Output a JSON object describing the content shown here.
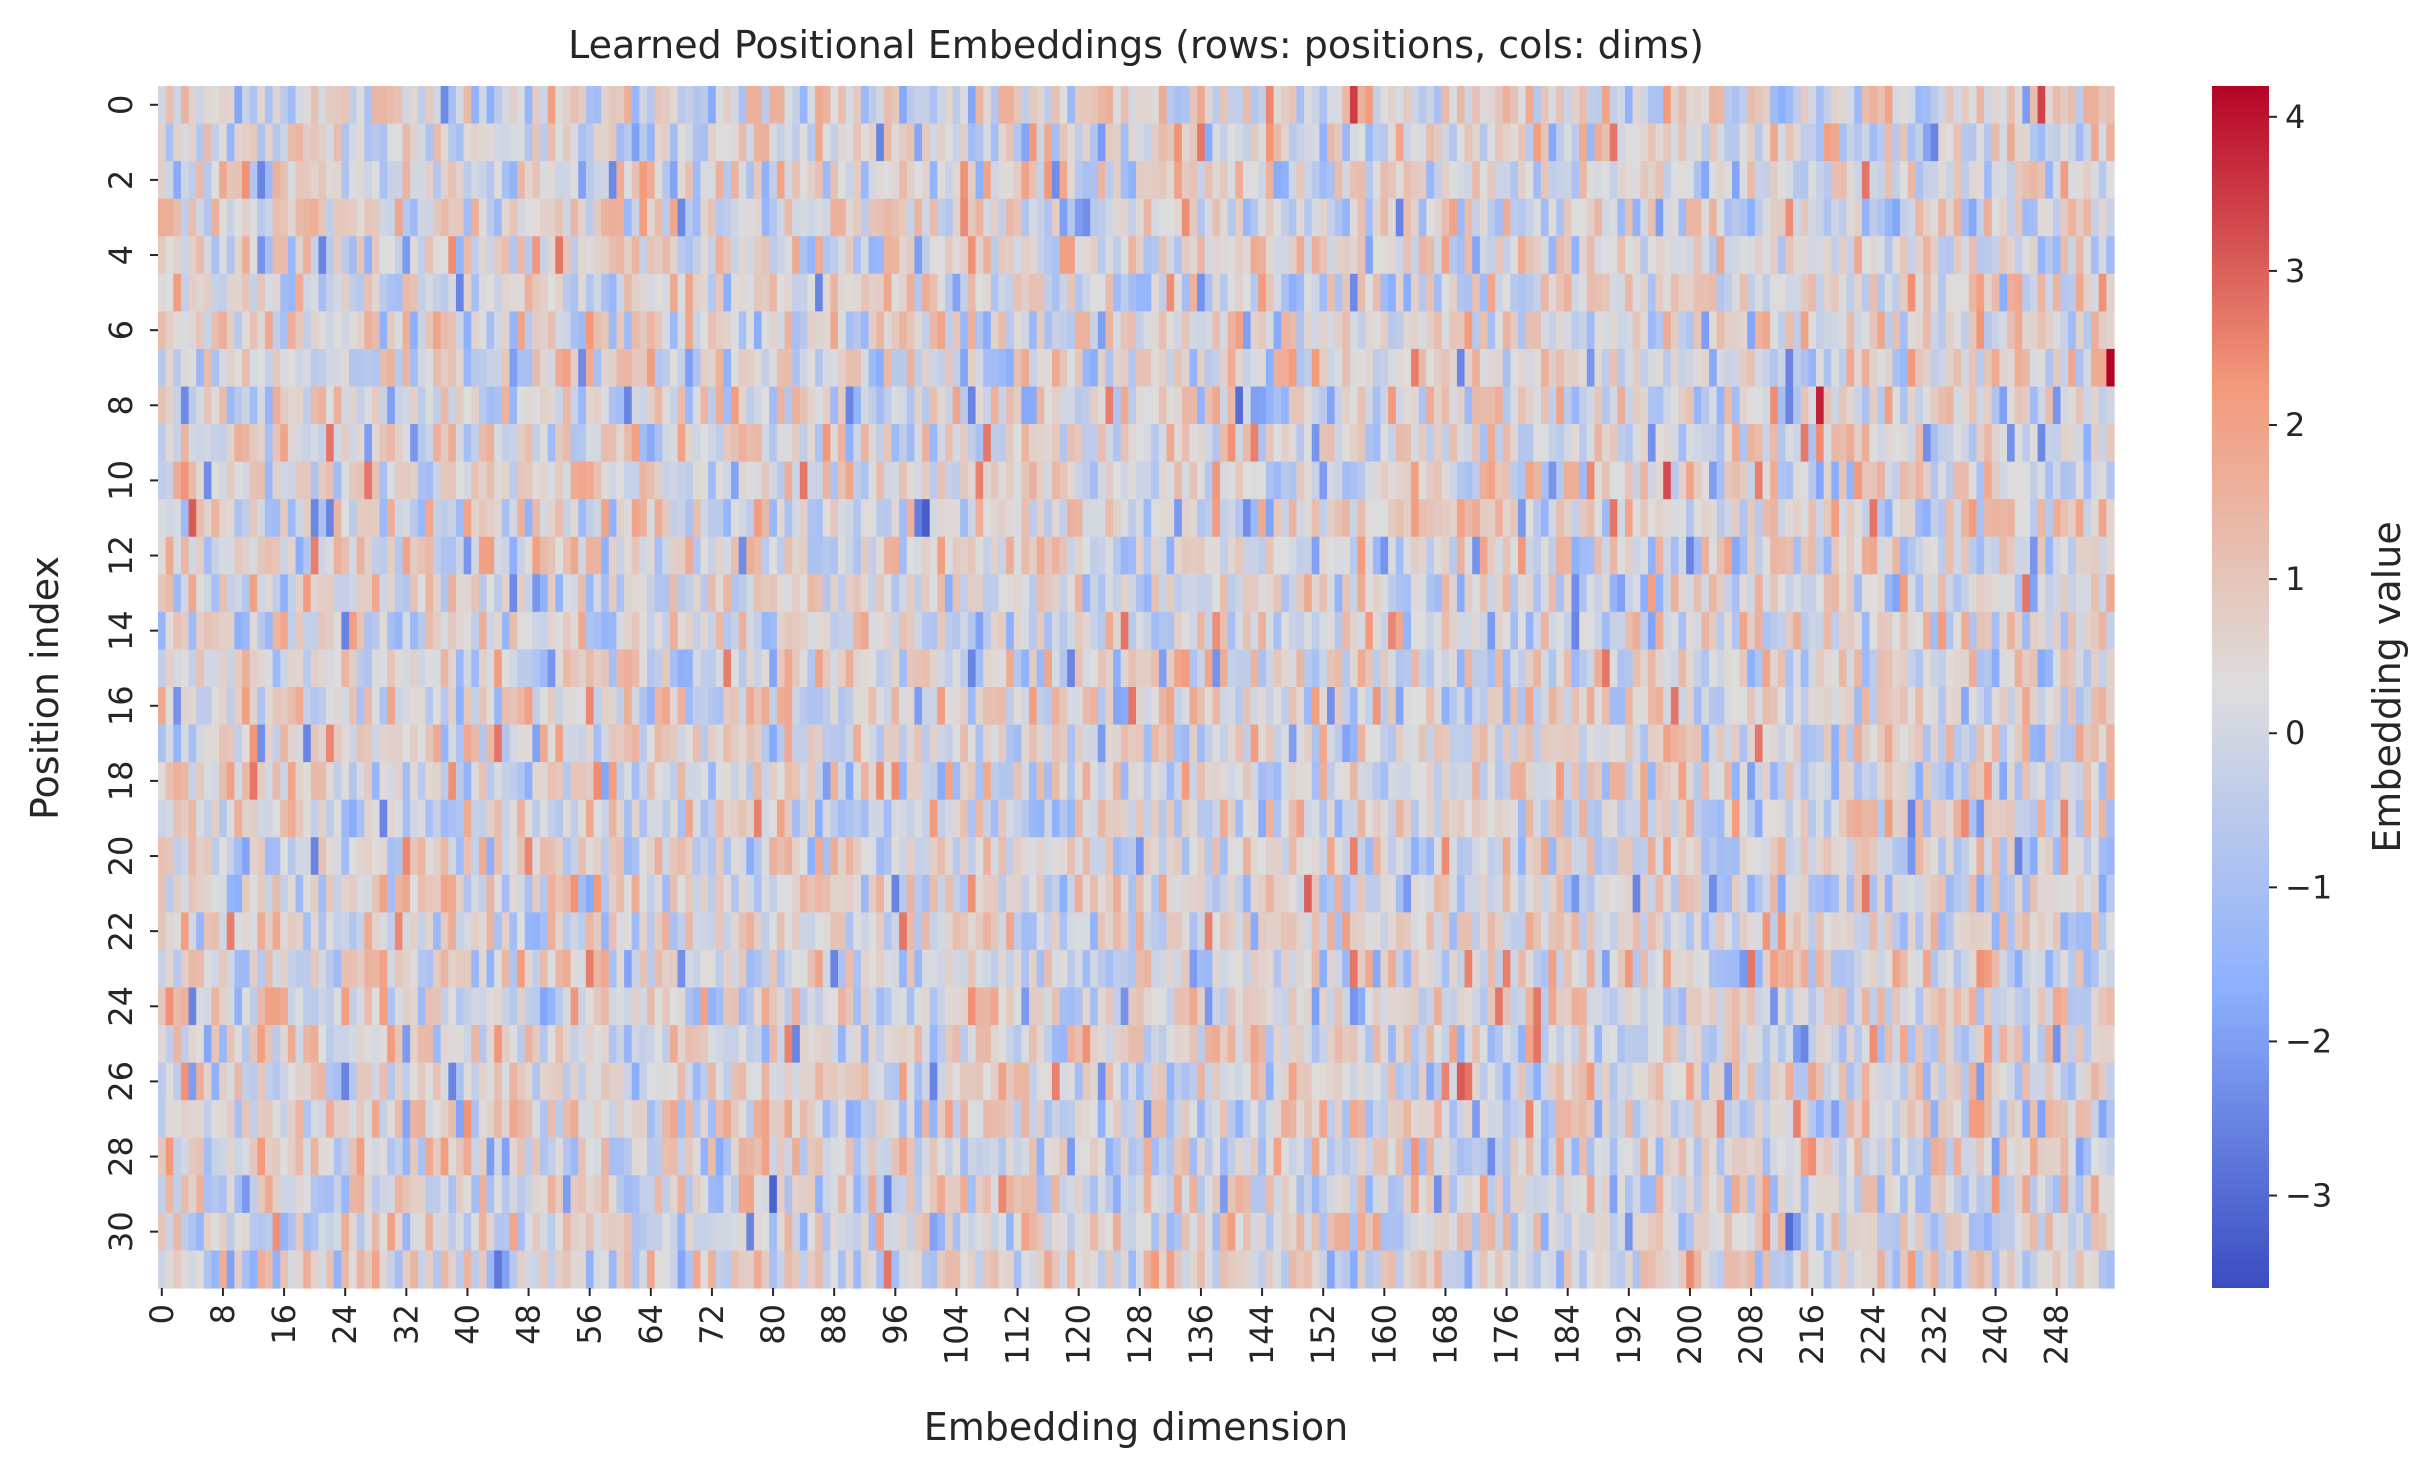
{
  "chart_data": {
    "type": "heatmap",
    "title": "Learned Positional Embeddings (rows: positions, cols: dims)",
    "xlabel": "Embedding dimension",
    "ylabel": "Position index",
    "n_rows": 32,
    "n_cols": 256,
    "colormap": "coolwarm",
    "colorbar": {
      "label": "Embedding value",
      "range": [
        -3.6,
        4.2
      ],
      "ticks": [
        -3,
        -2,
        -1,
        0,
        1,
        2,
        3,
        4
      ],
      "tick_labels": [
        "−3",
        "−2",
        "−1",
        "0",
        "1",
        "2",
        "3",
        "4"
      ],
      "colors": [
        "#3b4cc0",
        "#8db0fe",
        "#dddddd",
        "#f49a7b",
        "#b40426"
      ]
    },
    "x_ticks": [
      0,
      8,
      16,
      24,
      32,
      40,
      48,
      56,
      64,
      72,
      80,
      88,
      96,
      104,
      112,
      120,
      128,
      136,
      144,
      152,
      160,
      168,
      176,
      184,
      192,
      200,
      208,
      216,
      224,
      232,
      240,
      248
    ],
    "y_ticks": [
      0,
      2,
      4,
      6,
      8,
      10,
      12,
      14,
      16,
      18,
      20,
      22,
      24,
      26,
      28,
      30
    ],
    "values_summary": "approx. standard-normal values, mostly within -2..2",
    "notable_values": [
      {
        "row": 7,
        "col": 255,
        "value": 4.2
      },
      {
        "row": 8,
        "col": 217,
        "value": 3.8
      },
      {
        "row": 8,
        "col": 141,
        "value": -3.0
      },
      {
        "row": 11,
        "col": 4,
        "value": 3.0
      },
      {
        "row": 11,
        "col": 100,
        "value": -3.3
      },
      {
        "row": 11,
        "col": 99,
        "value": -2.7
      },
      {
        "row": 10,
        "col": 197,
        "value": 3.2
      },
      {
        "row": 0,
        "col": 156,
        "value": 3.4
      },
      {
        "row": 0,
        "col": 246,
        "value": 3.3
      },
      {
        "row": 29,
        "col": 80,
        "value": -3.2
      },
      {
        "row": 30,
        "col": 213,
        "value": -3.0
      },
      {
        "row": 31,
        "col": 44,
        "value": -2.8
      },
      {
        "row": 26,
        "col": 170,
        "value": 3.0
      },
      {
        "row": 21,
        "col": 150,
        "value": 2.9
      },
      {
        "row": 18,
        "col": 12,
        "value": 2.6
      },
      {
        "row": 23,
        "col": 56,
        "value": 2.5
      }
    ]
  }
}
